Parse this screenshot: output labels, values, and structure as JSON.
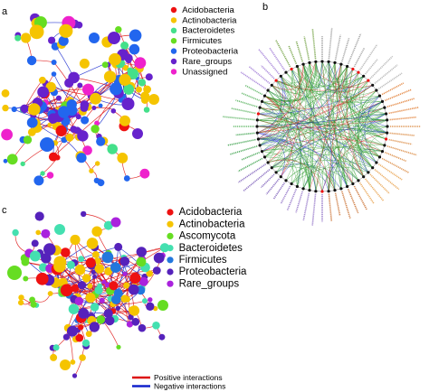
{
  "panels": {
    "a": {
      "letter": "a"
    },
    "b": {
      "letter": "b"
    },
    "c": {
      "letter": "c"
    }
  },
  "legend_a": {
    "items": [
      {
        "label": "Acidobacteria",
        "color": "#ee1111"
      },
      {
        "label": "Actinobacteria",
        "color": "#f5c400"
      },
      {
        "label": "Bacteroidetes",
        "color": "#44e08a"
      },
      {
        "label": "Firmicutes",
        "color": "#66dd22"
      },
      {
        "label": "Proteobacteria",
        "color": "#2266ee"
      },
      {
        "label": "Rare_groups",
        "color": "#6622cc"
      },
      {
        "label": "Unassigned",
        "color": "#ee22cc"
      }
    ]
  },
  "legend_c": {
    "items": [
      {
        "label": "Acidobacteria",
        "color": "#ee1111"
      },
      {
        "label": "Actinobacteria",
        "color": "#f5c400"
      },
      {
        "label": "Ascomycota",
        "color": "#66dd22"
      },
      {
        "label": "Bacteroidetes",
        "color": "#44e0b0"
      },
      {
        "label": "Firmicutes",
        "color": "#2277dd"
      },
      {
        "label": "Proteobacteria",
        "color": "#5522bb"
      },
      {
        "label": "Rare_groups",
        "color": "#aa22dd"
      }
    ]
  },
  "edge_legend": {
    "items": [
      {
        "label": "Positive interactions",
        "color": "#dd1111"
      },
      {
        "label": "Negative interactions",
        "color": "#1122cc"
      }
    ]
  },
  "colors": {
    "positive": "#dd1111",
    "negative": "#1122cc",
    "chord_green": "#2e9d2e"
  }
}
